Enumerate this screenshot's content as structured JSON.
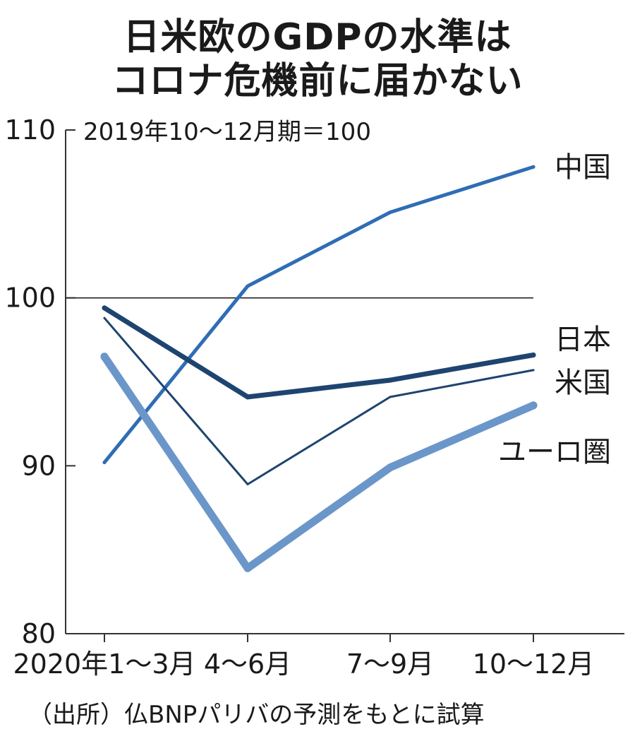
{
  "title_line1": "日米欧のGDPの水準は",
  "title_line2": "コロナ危機前に届かない",
  "chart_data": {
    "type": "line",
    "note": "2019年10～12月期＝100",
    "categories": [
      "2020年1～3月",
      "4～6月",
      "7～9月",
      "10～12月"
    ],
    "ylim": [
      80,
      110
    ],
    "yticks": [
      80,
      90,
      100,
      110
    ],
    "reference_line": 100,
    "series": [
      {
        "name": "中国",
        "values": [
          90.2,
          100.7,
          105.1,
          107.8
        ],
        "color": "#2f6db5"
      },
      {
        "name": "日本",
        "values": [
          99.4,
          94.1,
          95.1,
          96.6
        ],
        "color": "#1e4470"
      },
      {
        "name": "米国",
        "values": [
          98.8,
          88.9,
          94.1,
          95.7
        ],
        "color": "#1e4470"
      },
      {
        "name": "ユーロ圏",
        "values": [
          96.5,
          83.9,
          89.9,
          93.6
        ],
        "color": "#6b96c9"
      }
    ],
    "source": "（出所）仏BNPパリバの予測をもとに試算"
  }
}
